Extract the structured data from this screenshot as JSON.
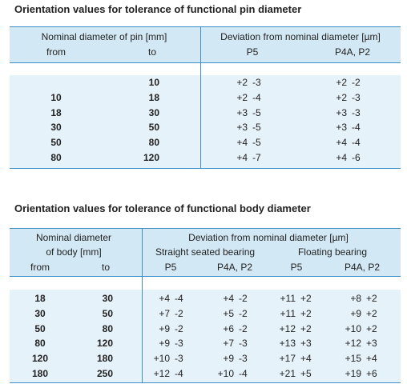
{
  "tables": [
    {
      "title": "Orientation values for tolerance of functional pin diameter",
      "header": {
        "left": "Nominal diameter of pin [mm]",
        "from": "from",
        "to": "to",
        "right": "Deviation from nominal diameter [µm]",
        "cols": [
          "P5",
          "P4A, P2"
        ]
      },
      "rows": [
        [
          null,
          "10",
          [
            "+2",
            "-3"
          ],
          [
            "+2",
            "-2"
          ]
        ],
        [
          "10",
          "18",
          [
            "+2",
            "-4"
          ],
          [
            "+2",
            "-3"
          ]
        ],
        [
          "18",
          "30",
          [
            "+3",
            "-5"
          ],
          [
            "+3",
            "-3"
          ]
        ],
        [
          "30",
          "50",
          [
            "+3",
            "-5"
          ],
          [
            "+3",
            "-4"
          ]
        ],
        [
          "50",
          "80",
          [
            "+4",
            "-5"
          ],
          [
            "+4",
            "-4"
          ]
        ],
        [
          "80",
          "120",
          [
            "+4",
            "-7"
          ],
          [
            "+4",
            "-6"
          ]
        ]
      ]
    },
    {
      "title": "Orientation values for tolerance of functional body diameter",
      "header": {
        "left": [
          "Nominal diameter",
          "of body [mm]"
        ],
        "from": "from",
        "to": "to",
        "right": "Deviation from nominal diameter [µm]",
        "groups": [
          "Straight seated bearing",
          "Floating bearing"
        ],
        "cols": [
          "P5",
          "P4A, P2",
          "P5",
          "P4A, P2"
        ]
      },
      "rows": [
        [
          "18",
          "30",
          [
            "+4",
            "-4"
          ],
          [
            "+4",
            "-2"
          ],
          [
            "+11",
            "+2"
          ],
          [
            "+8",
            "+2"
          ]
        ],
        [
          "30",
          "50",
          [
            "+7",
            "-2"
          ],
          [
            "+5",
            "-2"
          ],
          [
            "+11",
            "+2"
          ],
          [
            "+9",
            "+2"
          ]
        ],
        [
          "50",
          "80",
          [
            "+9",
            "-2"
          ],
          [
            "+6",
            "-2"
          ],
          [
            "+12",
            "+2"
          ],
          [
            "+10",
            "+2"
          ]
        ],
        [
          "80",
          "120",
          [
            "+9",
            "-3"
          ],
          [
            "+7",
            "-3"
          ],
          [
            "+13",
            "+3"
          ],
          [
            "+12",
            "+3"
          ]
        ],
        [
          "120",
          "180",
          [
            "+10",
            "-3"
          ],
          [
            "+9",
            "-3"
          ],
          [
            "+17",
            "+4"
          ],
          [
            "+15",
            "+4"
          ]
        ],
        [
          "180",
          "250",
          [
            "+12",
            "-4"
          ],
          [
            "+10",
            "-4"
          ],
          [
            "+21",
            "+5"
          ],
          [
            "+19",
            "+6"
          ]
        ]
      ]
    }
  ]
}
